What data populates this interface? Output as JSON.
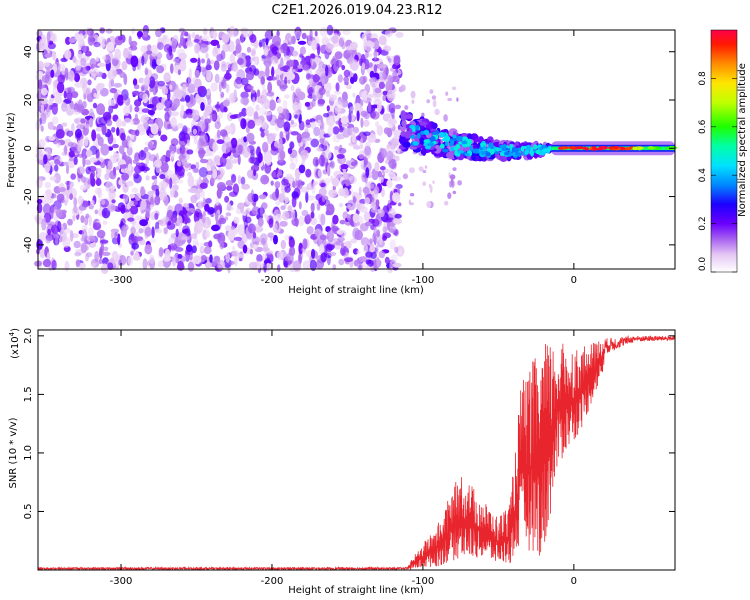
{
  "title": "C2E1.2026.019.04.23.R12",
  "chart_data": [
    {
      "type": "heatmap",
      "xlabel": "Height of straight line (km)",
      "ylabel": "Frequency (Hz)",
      "xlim": [
        -355,
        67
      ],
      "ylim": [
        -50,
        49
      ],
      "xticks": [
        -300,
        -200,
        -100,
        0
      ],
      "yticks": [
        -40,
        -20,
        0,
        20,
        40
      ],
      "colorbar": {
        "label": "Normalized spectral amplitude",
        "range": [
          0,
          1
        ],
        "ticks": [
          0.0,
          0.2,
          0.4,
          0.6,
          0.8
        ],
        "tick_labels": [
          "0.0",
          "0.2",
          "0.4",
          "0.6",
          "0.8"
        ],
        "colormap": "white-purple-blue-cyan-green-yellow-red"
      },
      "regions": [
        {
          "name": "broadband noise",
          "x_range": [
            -355,
            -115
          ],
          "freq_range": [
            -50,
            49
          ],
          "amplitude_range": [
            0.0,
            0.15
          ]
        },
        {
          "name": "carrier transition",
          "x_range": [
            -115,
            -15
          ],
          "freq_center_start": 8,
          "freq_center_end": 0,
          "amplitude_range": [
            0.1,
            0.45
          ]
        },
        {
          "name": "carrier line",
          "x_range": [
            -15,
            67
          ],
          "freq_center": 0,
          "amplitude_range": [
            0.8,
            1.0
          ]
        }
      ]
    },
    {
      "type": "line",
      "xlabel": "Height of straight line (km)",
      "ylabel": "SNR (10 * v/v)",
      "y_multiplier": "(x10",
      "y_multiplier_exp": "4",
      "y_multiplier_close": ")",
      "xlim": [
        -355,
        67
      ],
      "ylim": [
        0,
        2.05
      ],
      "xticks": [
        -300,
        -200,
        -100,
        0
      ],
      "yticks": [
        0.5,
        1.0,
        1.5,
        2.0
      ],
      "ytick_labels": [
        "0.5",
        "1.0",
        "1.5",
        "2.0"
      ],
      "color": "#e8242c",
      "series_envelope": [
        {
          "x": -355,
          "low": 0.0,
          "high": 0.03
        },
        {
          "x": -110,
          "low": 0.0,
          "high": 0.05
        },
        {
          "x": -90,
          "low": 0.03,
          "high": 0.4
        },
        {
          "x": -75,
          "low": 0.1,
          "high": 0.85
        },
        {
          "x": -60,
          "low": 0.1,
          "high": 0.6
        },
        {
          "x": -50,
          "low": 0.05,
          "high": 0.45
        },
        {
          "x": -42,
          "low": 0.05,
          "high": 0.6
        },
        {
          "x": -35,
          "low": 0.2,
          "high": 1.6
        },
        {
          "x": -20,
          "low": 0.1,
          "high": 1.95
        },
        {
          "x": -10,
          "low": 0.9,
          "high": 1.95
        },
        {
          "x": 5,
          "low": 1.2,
          "high": 1.9
        },
        {
          "x": 20,
          "low": 1.7,
          "high": 1.98
        },
        {
          "x": 40,
          "low": 1.9,
          "high": 2.0
        },
        {
          "x": 67,
          "low": 1.92,
          "high": 2.0
        }
      ]
    }
  ]
}
